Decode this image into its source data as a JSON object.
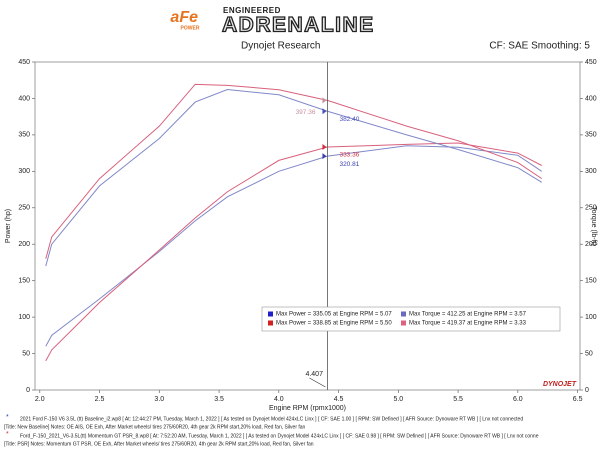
{
  "header": {
    "logo": "aFe",
    "logo_sub": "POWER",
    "tagline_top": "ENGINEERED",
    "tagline": "ADRENALINE",
    "source": "Dynojet Research",
    "settings": "CF: SAE Smoothing: 5"
  },
  "chart_data": {
    "type": "line",
    "x": [
      2.05,
      2.1,
      2.5,
      3.0,
      3.3,
      3.57,
      4.0,
      4.407,
      5.07,
      5.5,
      6.0,
      6.2
    ],
    "series": [
      {
        "axis": "y",
        "color": "#8088c8",
        "values": [
          60,
          75,
          125,
          190,
          232,
          265,
          300,
          320.81,
          335.05,
          333,
          322,
          300
        ]
      },
      {
        "axis": "y",
        "color": "#d8607c",
        "values": [
          40,
          55,
          120,
          192,
          236,
          272,
          315,
          333.36,
          337,
          338.85,
          325,
          308
        ]
      },
      {
        "axis": "y2",
        "color": "#8088c8",
        "values": [
          170,
          200,
          280,
          345,
          395,
          412.25,
          405,
          382.4,
          350,
          330,
          305,
          285
        ]
      },
      {
        "axis": "y2",
        "color": "#d8607c",
        "values": [
          180,
          210,
          290,
          362,
          419.37,
          418,
          412,
          397.36,
          362,
          342,
          312,
          290
        ]
      }
    ],
    "xlim": [
      1.96,
      6.52
    ],
    "xticks": [
      {
        "value": 2,
        "label": "2.0"
      },
      2.5,
      {
        "value": 3,
        "label": "3.0"
      },
      3.5,
      {
        "value": 4,
        "label": "4.0"
      },
      4.5,
      {
        "value": 5,
        "label": "5.0"
      },
      5.5,
      {
        "value": 6,
        "label": "6.0"
      },
      6.5
    ],
    "ylim": [
      0,
      450
    ],
    "yticks": [
      0,
      50,
      100,
      150,
      200,
      250,
      300,
      350,
      400,
      450
    ],
    "y2lim": [
      0,
      450
    ],
    "y2ticks": [
      0,
      50,
      100,
      150,
      200,
      250,
      300,
      350,
      400,
      450
    ],
    "xlabel": "Engine RPM (rpmx1000)",
    "ylabel": "Power (hp)",
    "y2label": "Torque (lb-ft)",
    "grid": false,
    "cursor_x": 4.407,
    "cursor_readouts": [
      {
        "value": 397.36,
        "label": "397.36",
        "color": "#c8909c"
      },
      {
        "value": 382.4,
        "label": "382.40",
        "color": "#4a50b8"
      },
      {
        "value": 333.36,
        "label": "333.36",
        "color": "#d03040"
      },
      {
        "value": 320.81,
        "label": "320.81",
        "color": "#3a40b0"
      }
    ],
    "legend": [
      {
        "text": "Max Power = 335.05 at Engine RPM = 5.07",
        "color": "#2020c8"
      },
      {
        "text": "Max Torque = 412.25 at Engine RPM = 3.57",
        "color": "#6a6ac0"
      },
      {
        "text": "Max Power = 338.85 at Engine RPM = 5.50",
        "color": "#d02020"
      },
      {
        "text": "Max Torque = 419.37 at Engine RPM = 3.33",
        "color": "#e06080"
      }
    ],
    "brand": "DYNOJET"
  },
  "footer": [
    "2021 Ford F-150 V6 3.5L (tt) Baseline_i2.wp8 [ At: 12:44:27 PM, Tuesday, March 1, 2022 ] [ As tested on Dynojet Model 424xLC Linx ] [ CF: SAE 1.00 ] [ RPM: SW Defined ] [ AFR Source: Dynoware RT WB ] [ Lnx not connected",
    "[Title: New Baseline]  Notes: OE AIS, OE Exh, After Market wheels/ tires 275/60R20, 4th gear 2k RPM start,20% load, Red fan, Silver fan",
    "Ford_F-150_2021_V6-3.5L(tt) Momentum GT PSR_8.wp8 [ At: 7:52:20 AM, Tuesday, March 1, 2022 ] [ As tested on Dynojet Model 424xLC Linx ] [ CF: SAE 0.98 ] [ RPM: SW Defined ] [ AFR Source: Dynoware RT WB ] [ Lnx not conne",
    "[Title: PSR]  Notes: Momentum GT  PSR, OE Exh, After Market wheels/ tires 275/60R20, 4th gear 2k RPM start,20% load, Red fan, Silver fan"
  ]
}
